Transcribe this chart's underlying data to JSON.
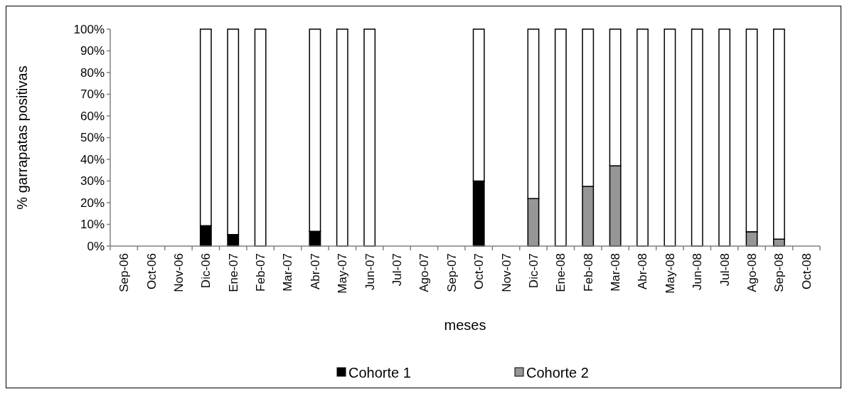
{
  "chart_data": {
    "type": "bar",
    "stacked": true,
    "xlabel": "meses",
    "ylabel": "% garrapatas positivas",
    "categories": [
      "Sep-06",
      "Oct-06",
      "Nov-06",
      "Dic-06",
      "Ene-07",
      "Feb-07",
      "Mar-07",
      "Abr-07",
      "May-07",
      "Jun-07",
      "Jul-07",
      "Ago-07",
      "Sep-07",
      "Oct-07",
      "Nov-07",
      "Dic-07",
      "Ene-08",
      "Feb-08",
      "Mar-08",
      "Abr-08",
      "May-08",
      "Jun-08",
      "Jul-08",
      "Ago-08",
      "Sep-08",
      "Oct-08"
    ],
    "series": [
      {
        "name": "Cohorte 1",
        "color": "#000000",
        "values": [
          null,
          null,
          null,
          9.4,
          5.3,
          0,
          null,
          6.8,
          0,
          0,
          null,
          null,
          null,
          30,
          null,
          null,
          null,
          null,
          null,
          null,
          null,
          null,
          null,
          null,
          null,
          null
        ]
      },
      {
        "name": "Cohorte 2",
        "color": "#969696",
        "values": [
          null,
          null,
          null,
          null,
          null,
          null,
          null,
          null,
          null,
          null,
          null,
          null,
          null,
          null,
          null,
          21.9,
          0,
          27.5,
          37,
          0,
          0,
          0,
          0,
          6.6,
          3.2,
          null
        ]
      },
      {
        "color": "#ffffff",
        "values": [
          null,
          null,
          null,
          90.6,
          94.7,
          100,
          null,
          93.2,
          100,
          100,
          null,
          null,
          null,
          70,
          null,
          78.1,
          100,
          72.5,
          63,
          100,
          100,
          100,
          100,
          93.4,
          96.8,
          null
        ]
      }
    ],
    "ylim": [
      0,
      100
    ],
    "yticks": [
      {
        "value": 0,
        "label": "0%"
      },
      {
        "value": 10,
        "label": "10%"
      },
      {
        "value": 20,
        "label": "20%"
      },
      {
        "value": 30,
        "label": "30%"
      },
      {
        "value": 40,
        "label": "40%"
      },
      {
        "value": 50,
        "label": "50%"
      },
      {
        "value": 60,
        "label": "60%"
      },
      {
        "value": 70,
        "label": "70%"
      },
      {
        "value": 80,
        "label": "80%"
      },
      {
        "value": 90,
        "label": "90%"
      },
      {
        "value": 100,
        "label": "100%"
      }
    ],
    "legend": "bottom"
  }
}
